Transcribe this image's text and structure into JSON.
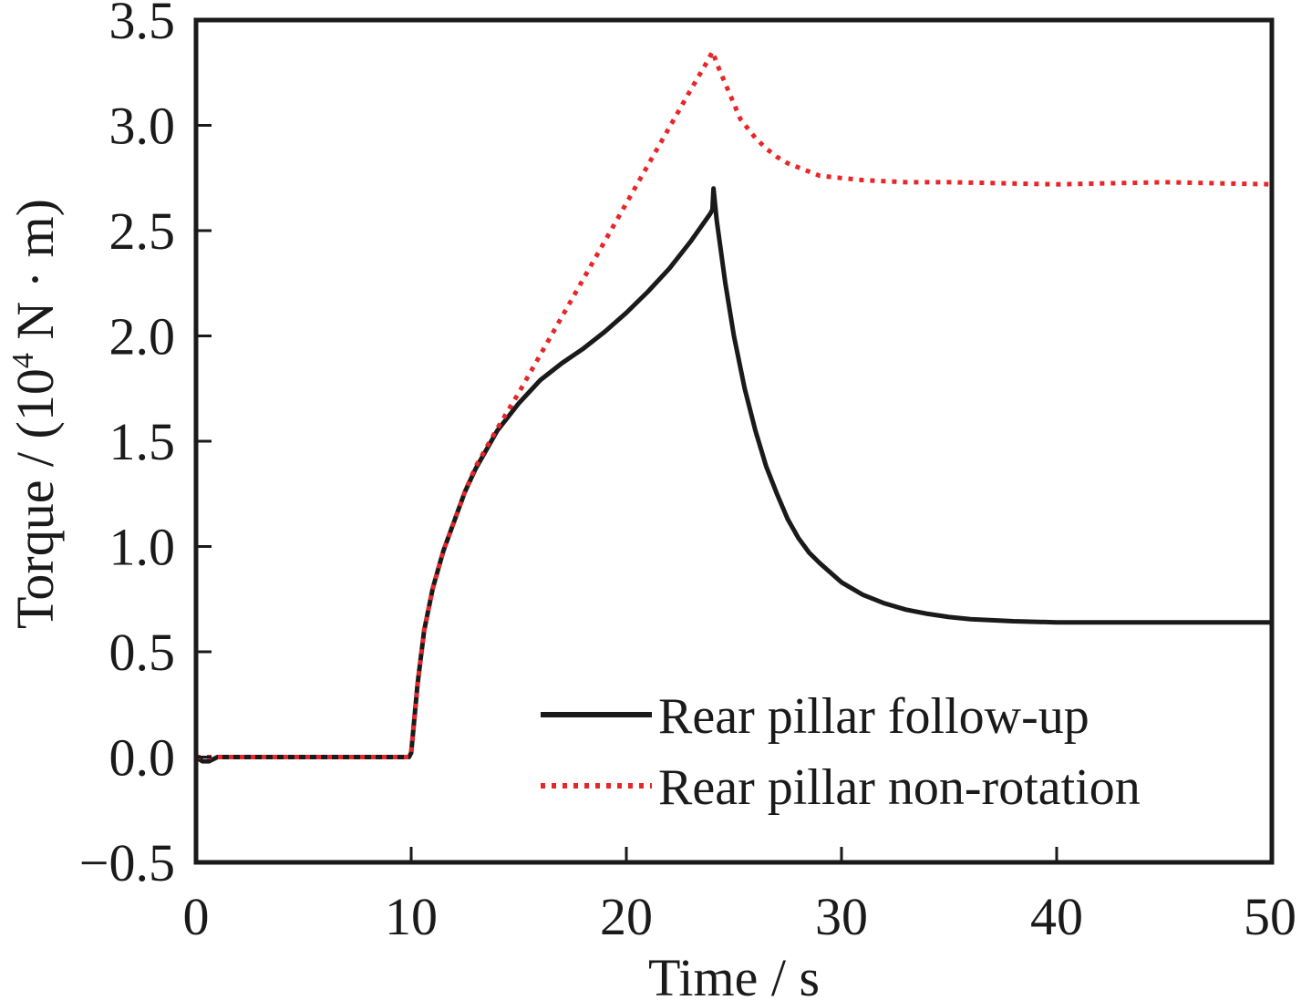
{
  "chart_data": {
    "type": "line",
    "title": "",
    "xlabel": "Time / s",
    "ylabel": {
      "prefix": "Torque / (10",
      "superscript": "4",
      "suffix": " N · m)"
    },
    "xlim": [
      0,
      50
    ],
    "ylim": [
      -0.5,
      3.5
    ],
    "xticks": [
      0,
      10,
      20,
      30,
      40,
      50
    ],
    "xtick_labels": [
      "0",
      "10",
      "20",
      "30",
      "40",
      "50"
    ],
    "yticks": [
      -0.5,
      0.0,
      0.5,
      1.0,
      1.5,
      2.0,
      2.5,
      3.0,
      3.5
    ],
    "ytick_labels": [
      "−0.5",
      "0.0",
      "0.5",
      "1.0",
      "1.5",
      "2.0",
      "2.5",
      "3.0",
      "3.5"
    ],
    "grid": false,
    "legend_position": "bottom-right",
    "series": [
      {
        "name": "Rear pillar follow-up",
        "color": "#1a1a1a",
        "style": "solid",
        "x": [
          0,
          0.3,
          0.6,
          1,
          5,
          9.9,
          10.0,
          10.3,
          10.6,
          11,
          11.5,
          12,
          12.5,
          13,
          14,
          15,
          16,
          17,
          18,
          19,
          20,
          21,
          22,
          23,
          23.9,
          24.0,
          24.05,
          24.2,
          24.6,
          25,
          25.5,
          26,
          26.5,
          27,
          27.5,
          28,
          28.5,
          29,
          30,
          31,
          32,
          33,
          34,
          35,
          36,
          38,
          40,
          45,
          50
        ],
        "y": [
          0,
          -0.02,
          -0.02,
          0,
          0,
          0,
          0.02,
          0.35,
          0.6,
          0.8,
          0.98,
          1.12,
          1.26,
          1.37,
          1.55,
          1.68,
          1.79,
          1.87,
          1.94,
          2.02,
          2.11,
          2.21,
          2.32,
          2.45,
          2.58,
          2.6,
          2.7,
          2.55,
          2.25,
          2.0,
          1.75,
          1.55,
          1.38,
          1.25,
          1.13,
          1.04,
          0.97,
          0.92,
          0.83,
          0.77,
          0.73,
          0.7,
          0.68,
          0.665,
          0.655,
          0.645,
          0.64,
          0.64,
          0.64
        ]
      },
      {
        "name": "Rear pillar non-rotation",
        "color": "#e8262a",
        "style": "dotted",
        "x": [
          0,
          1,
          5,
          9.9,
          10.0,
          10.3,
          10.6,
          11,
          11.5,
          12,
          12.5,
          13,
          14,
          15,
          16,
          17,
          18,
          19,
          20,
          21,
          22,
          23,
          23.8,
          24.0,
          24.3,
          24.8,
          25.3,
          26,
          26.5,
          27,
          27.5,
          28,
          29,
          30,
          31,
          33,
          35,
          40,
          45,
          50
        ],
        "y": [
          0,
          0,
          0,
          0,
          0.02,
          0.35,
          0.6,
          0.8,
          0.98,
          1.12,
          1.26,
          1.38,
          1.56,
          1.73,
          1.91,
          2.09,
          2.27,
          2.45,
          2.63,
          2.81,
          2.99,
          3.17,
          3.31,
          3.35,
          3.27,
          3.15,
          3.03,
          2.94,
          2.89,
          2.85,
          2.82,
          2.8,
          2.76,
          2.75,
          2.74,
          2.73,
          2.73,
          2.72,
          2.73,
          2.72
        ]
      }
    ]
  }
}
